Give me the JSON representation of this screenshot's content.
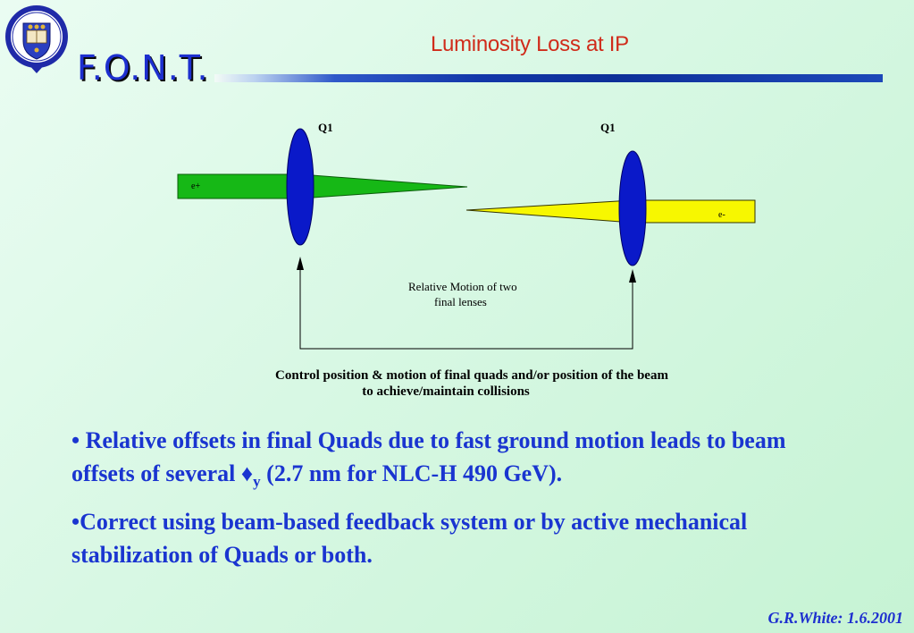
{
  "logo": {
    "alt": "University of Oxford crest"
  },
  "header": {
    "font_title": "F.O.N.T.",
    "slide_title": "Luminosity Loss at IP"
  },
  "diagram": {
    "q1_left": "Q1",
    "q1_right": "Q1",
    "eplus": "e+",
    "eminus": "e-",
    "relative_motion_line1": "Relative Motion of two",
    "relative_motion_line2": "final lenses",
    "caption_line1": "Control position & motion of final quads and/or position of the beam",
    "caption_line2": "to achieve/maintain collisions",
    "colors": {
      "lens": "#0a19c9",
      "eplus_beam": "#16b816",
      "eminus_beam": "#f7f700"
    }
  },
  "bullets": [
    {
      "text_a": "• Relative offsets in final Quads due to fast ground motion leads to beam offsets of several ",
      "symbol": "♦",
      "subscript": "y",
      "text_b": " (2.7 nm for NLC-H 490 GeV)."
    },
    {
      "text": "•Correct using beam-based feedback system or by active mechanical stabilization of Quads or both."
    }
  ],
  "footer": "G.R.White: 1.6.2001"
}
